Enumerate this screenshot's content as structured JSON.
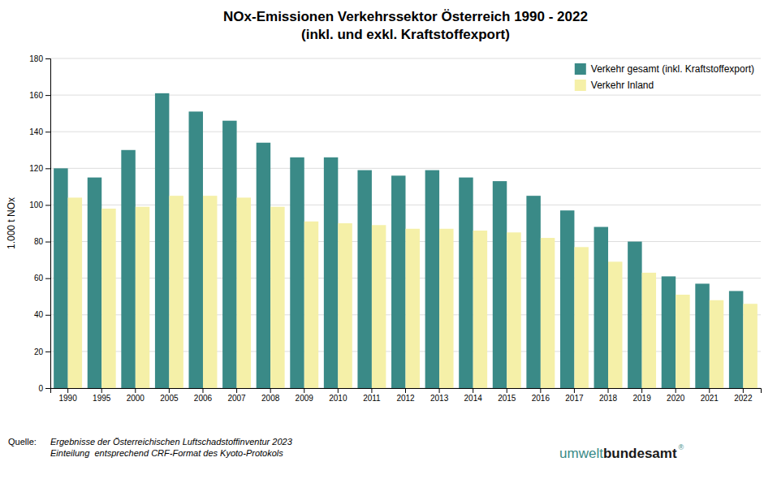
{
  "chart_data": {
    "type": "bar",
    "title": "NOx-Emissionen Verkehrssektor Österreich 1990 - 2022",
    "subtitle": "(inkl. und exkl. Kraftstoffexport)",
    "ylabel": "1.000 t NOx",
    "categories": [
      "1990",
      "1995",
      "2000",
      "2005",
      "2006",
      "2007",
      "2008",
      "2009",
      "2010",
      "2011",
      "2012",
      "2013",
      "2014",
      "2015",
      "2016",
      "2017",
      "2018",
      "2019",
      "2020",
      "2021",
      "2022"
    ],
    "series": [
      {
        "name": "Verkehr gesamt (inkl. Kraftstoffexport)",
        "color": "#3a8a87",
        "values": [
          120,
          115,
          130,
          161,
          151,
          146,
          134,
          126,
          126,
          119,
          116,
          119,
          115,
          113,
          105,
          97,
          88,
          80,
          61,
          57,
          53
        ]
      },
      {
        "name": "Verkehr Inland",
        "color": "#f5f0a8",
        "values": [
          104,
          98,
          99,
          105,
          105,
          104,
          99,
          91,
          90,
          89,
          87,
          87,
          86,
          85,
          82,
          77,
          69,
          63,
          51,
          48,
          46
        ]
      }
    ],
    "ylim": [
      0,
      180
    ],
    "yticks": [
      0,
      20,
      40,
      60,
      80,
      100,
      120,
      140,
      160,
      180
    ],
    "grid": true,
    "legend": "upper right",
    "annotations": [
      "Quelle:",
      "Ergebnisse der Österreichischen Luftschadstoffinventur 2023",
      "Einteilung  entsprechend CRF-Format des Kyoto-Protokols",
      "umwelt",
      "bundesamt",
      "®"
    ]
  }
}
